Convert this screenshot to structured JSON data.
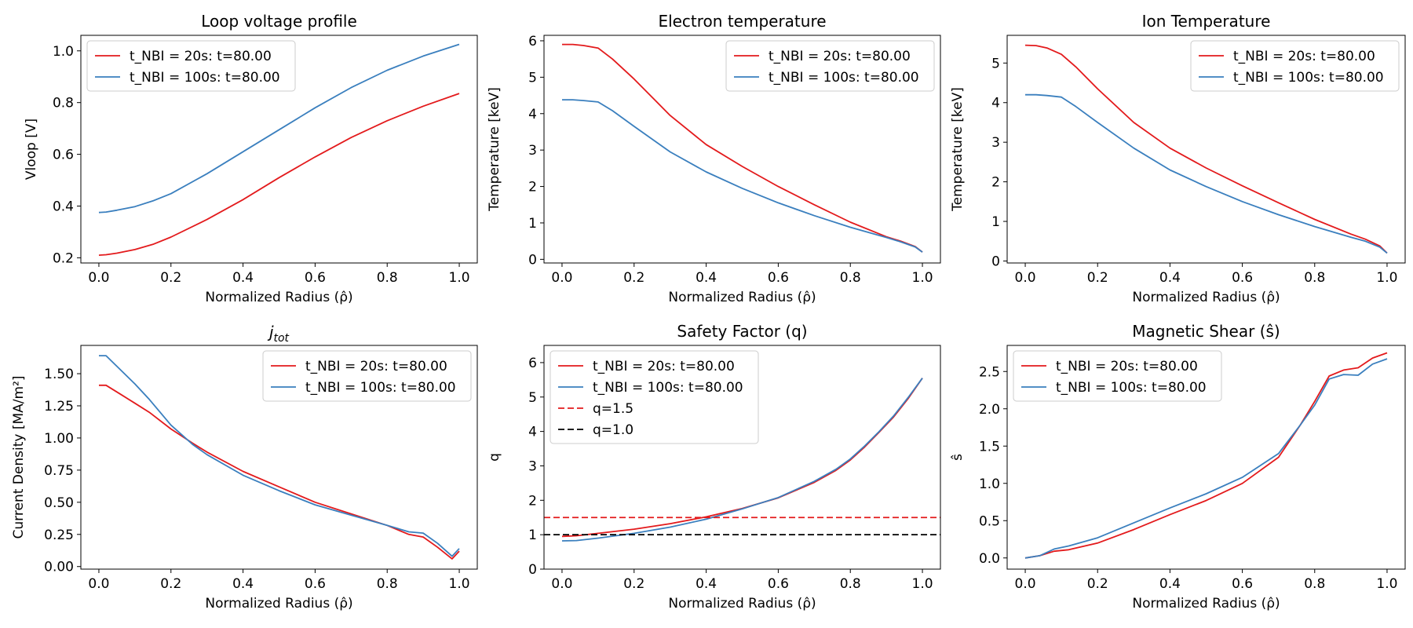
{
  "chart_data": [
    {
      "type": "line",
      "title": "Loop voltage profile",
      "xlabel": "Normalized Radius (ρ̂)",
      "ylabel": "Vloop [V]",
      "xlim": [
        -0.05,
        1.05
      ],
      "ylim": [
        0.18,
        1.06
      ],
      "xticks": [
        0.0,
        0.2,
        0.4,
        0.6,
        0.8,
        1.0
      ],
      "xtick_labels": [
        "0.0",
        "0.2",
        "0.4",
        "0.6",
        "0.8",
        "1.0"
      ],
      "yticks": [
        0.2,
        0.4,
        0.6,
        0.8,
        1.0
      ],
      "ytick_labels": [
        "0.2",
        "0.4",
        "0.6",
        "0.8",
        "1.0"
      ],
      "legend_loc": "top-left",
      "series": [
        {
          "name": "t_NBI = 20s: t=80.00",
          "color": "#e31a1c",
          "dash": "solid",
          "x": [
            0,
            0.02,
            0.05,
            0.1,
            0.15,
            0.2,
            0.3,
            0.4,
            0.5,
            0.6,
            0.7,
            0.8,
            0.9,
            1.0
          ],
          "y": [
            0.21,
            0.212,
            0.218,
            0.232,
            0.252,
            0.28,
            0.348,
            0.425,
            0.51,
            0.59,
            0.665,
            0.73,
            0.786,
            0.835
          ]
        },
        {
          "name": "t_NBI = 100s: t=80.00",
          "color": "#3a7fbe",
          "dash": "solid",
          "x": [
            0,
            0.02,
            0.05,
            0.1,
            0.15,
            0.2,
            0.3,
            0.4,
            0.5,
            0.6,
            0.7,
            0.8,
            0.9,
            1.0
          ],
          "y": [
            0.375,
            0.377,
            0.384,
            0.398,
            0.42,
            0.448,
            0.525,
            0.61,
            0.695,
            0.78,
            0.858,
            0.925,
            0.98,
            1.025
          ]
        }
      ]
    },
    {
      "type": "line",
      "title": "Electron temperature",
      "xlabel": "Normalized Radius (ρ̂)",
      "ylabel": "Temperature [keV]",
      "xlim": [
        -0.05,
        1.05
      ],
      "ylim": [
        -0.1,
        6.15
      ],
      "xticks": [
        0.0,
        0.2,
        0.4,
        0.6,
        0.8,
        1.0
      ],
      "xtick_labels": [
        "0.0",
        "0.2",
        "0.4",
        "0.6",
        "0.8",
        "1.0"
      ],
      "yticks": [
        0,
        1,
        2,
        3,
        4,
        5,
        6
      ],
      "ytick_labels": [
        "0",
        "1",
        "2",
        "3",
        "4",
        "5",
        "6"
      ],
      "legend_loc": "top-right",
      "series": [
        {
          "name": "t_NBI = 20s: t=80.00",
          "color": "#e31a1c",
          "dash": "solid",
          "x": [
            0,
            0.03,
            0.06,
            0.1,
            0.14,
            0.2,
            0.3,
            0.4,
            0.5,
            0.6,
            0.7,
            0.8,
            0.9,
            0.94,
            0.98,
            1.0
          ],
          "y": [
            5.9,
            5.9,
            5.87,
            5.8,
            5.5,
            4.95,
            3.95,
            3.15,
            2.55,
            2.0,
            1.5,
            1.02,
            0.62,
            0.5,
            0.35,
            0.2
          ]
        },
        {
          "name": "t_NBI = 100s: t=80.00",
          "color": "#3a7fbe",
          "dash": "solid",
          "x": [
            0,
            0.03,
            0.06,
            0.1,
            0.14,
            0.2,
            0.3,
            0.4,
            0.5,
            0.6,
            0.7,
            0.8,
            0.9,
            0.94,
            0.98,
            1.0
          ],
          "y": [
            4.38,
            4.38,
            4.36,
            4.32,
            4.08,
            3.65,
            2.95,
            2.4,
            1.95,
            1.55,
            1.2,
            0.88,
            0.6,
            0.48,
            0.34,
            0.2
          ]
        }
      ]
    },
    {
      "type": "line",
      "title": "Ion Temperature",
      "xlabel": "Normalized Radius (ρ̂)",
      "ylabel": "Temperature [keV]",
      "xlim": [
        -0.05,
        1.05
      ],
      "ylim": [
        -0.05,
        5.7
      ],
      "xticks": [
        0.0,
        0.2,
        0.4,
        0.6,
        0.8,
        1.0
      ],
      "xtick_labels": [
        "0.0",
        "0.2",
        "0.4",
        "0.6",
        "0.8",
        "1.0"
      ],
      "yticks": [
        0,
        1,
        2,
        3,
        4,
        5
      ],
      "ytick_labels": [
        "0",
        "1",
        "2",
        "3",
        "4",
        "5"
      ],
      "legend_loc": "top-right",
      "series": [
        {
          "name": "t_NBI = 20s: t=80.00",
          "color": "#e31a1c",
          "dash": "solid",
          "x": [
            0,
            0.03,
            0.06,
            0.1,
            0.14,
            0.2,
            0.3,
            0.4,
            0.5,
            0.6,
            0.7,
            0.8,
            0.9,
            0.94,
            0.98,
            1.0
          ],
          "y": [
            5.45,
            5.44,
            5.38,
            5.22,
            4.9,
            4.35,
            3.5,
            2.85,
            2.35,
            1.9,
            1.47,
            1.05,
            0.68,
            0.55,
            0.38,
            0.2
          ]
        },
        {
          "name": "t_NBI = 100s: t=80.00",
          "color": "#3a7fbe",
          "dash": "solid",
          "x": [
            0,
            0.03,
            0.06,
            0.1,
            0.14,
            0.2,
            0.3,
            0.4,
            0.5,
            0.6,
            0.7,
            0.8,
            0.9,
            0.94,
            0.98,
            1.0
          ],
          "y": [
            4.2,
            4.2,
            4.18,
            4.14,
            3.9,
            3.5,
            2.85,
            2.3,
            1.88,
            1.5,
            1.17,
            0.87,
            0.6,
            0.5,
            0.35,
            0.2
          ]
        }
      ]
    },
    {
      "type": "line",
      "title": "j_tot",
      "xlabel": "Normalized Radius (ρ̂)",
      "ylabel": "Current Density [MA/m²]",
      "xlim": [
        -0.05,
        1.05
      ],
      "ylim": [
        -0.02,
        1.72
      ],
      "xticks": [
        0.0,
        0.2,
        0.4,
        0.6,
        0.8,
        1.0
      ],
      "xtick_labels": [
        "0.0",
        "0.2",
        "0.4",
        "0.6",
        "0.8",
        "1.0"
      ],
      "yticks": [
        0.0,
        0.25,
        0.5,
        0.75,
        1.0,
        1.25,
        1.5
      ],
      "ytick_labels": [
        "0.00",
        "0.25",
        "0.50",
        "0.75",
        "1.00",
        "1.25",
        "1.50"
      ],
      "legend_loc": "top-right",
      "series": [
        {
          "name": "t_NBI = 20s: t=80.00",
          "color": "#e31a1c",
          "dash": "solid",
          "x": [
            0,
            0.02,
            0.06,
            0.1,
            0.14,
            0.2,
            0.26,
            0.3,
            0.4,
            0.5,
            0.6,
            0.7,
            0.8,
            0.86,
            0.9,
            0.94,
            0.98,
            1.0
          ],
          "y": [
            1.41,
            1.41,
            1.34,
            1.27,
            1.2,
            1.07,
            0.96,
            0.89,
            0.74,
            0.62,
            0.5,
            0.41,
            0.32,
            0.25,
            0.23,
            0.15,
            0.06,
            0.12
          ]
        },
        {
          "name": "t_NBI = 100s: t=80.00",
          "color": "#3a7fbe",
          "dash": "solid",
          "x": [
            0,
            0.02,
            0.06,
            0.1,
            0.14,
            0.2,
            0.26,
            0.3,
            0.4,
            0.5,
            0.6,
            0.7,
            0.8,
            0.86,
            0.9,
            0.94,
            0.98,
            1.0
          ],
          "y": [
            1.64,
            1.64,
            1.53,
            1.42,
            1.3,
            1.1,
            0.95,
            0.87,
            0.71,
            0.59,
            0.48,
            0.4,
            0.32,
            0.27,
            0.26,
            0.18,
            0.08,
            0.14
          ]
        }
      ]
    },
    {
      "type": "line",
      "title": "Safety Factor (q)",
      "xlabel": "Normalized Radius (ρ̂)",
      "ylabel": "q",
      "xlim": [
        -0.05,
        1.05
      ],
      "ylim": [
        0,
        6.5
      ],
      "xticks": [
        0.0,
        0.2,
        0.4,
        0.6,
        0.8,
        1.0
      ],
      "xtick_labels": [
        "0.0",
        "0.2",
        "0.4",
        "0.6",
        "0.8",
        "1.0"
      ],
      "yticks": [
        0,
        1,
        2,
        3,
        4,
        5,
        6
      ],
      "ytick_labels": [
        "0",
        "1",
        "2",
        "3",
        "4",
        "5",
        "6"
      ],
      "legend_loc": "top-left",
      "series": [
        {
          "name": "t_NBI = 20s: t=80.00",
          "color": "#e31a1c",
          "dash": "solid",
          "x": [
            0,
            0.04,
            0.1,
            0.2,
            0.3,
            0.4,
            0.5,
            0.6,
            0.7,
            0.76,
            0.8,
            0.84,
            0.88,
            0.92,
            0.96,
            1.0
          ],
          "y": [
            0.95,
            0.97,
            1.04,
            1.16,
            1.32,
            1.52,
            1.76,
            2.07,
            2.52,
            2.87,
            3.17,
            3.55,
            3.98,
            4.42,
            4.95,
            5.55
          ]
        },
        {
          "name": "t_NBI = 100s: t=80.00",
          "color": "#3a7fbe",
          "dash": "solid",
          "x": [
            0,
            0.04,
            0.1,
            0.2,
            0.3,
            0.4,
            0.5,
            0.6,
            0.7,
            0.76,
            0.8,
            0.84,
            0.88,
            0.92,
            0.96,
            1.0
          ],
          "y": [
            0.82,
            0.83,
            0.9,
            1.04,
            1.22,
            1.45,
            1.75,
            2.08,
            2.55,
            2.9,
            3.2,
            3.58,
            4.0,
            4.45,
            4.98,
            5.55
          ]
        },
        {
          "name": "q=1.5",
          "color": "#e31a1c",
          "dash": "dashed",
          "hline": 1.5
        },
        {
          "name": "q=1.0",
          "color": "#000000",
          "dash": "dashed",
          "hline": 1.0
        }
      ]
    },
    {
      "type": "line",
      "title": "Magnetic Shear (ŝ)",
      "xlabel": "Normalized Radius (ρ̂)",
      "ylabel": "ŝ",
      "xlim": [
        -0.05,
        1.05
      ],
      "ylim": [
        -0.15,
        2.85
      ],
      "xticks": [
        0.0,
        0.2,
        0.4,
        0.6,
        0.8,
        1.0
      ],
      "xtick_labels": [
        "0.0",
        "0.2",
        "0.4",
        "0.6",
        "0.8",
        "1.0"
      ],
      "yticks": [
        0.0,
        0.5,
        1.0,
        1.5,
        2.0,
        2.5
      ],
      "ytick_labels": [
        "0.0",
        "0.5",
        "1.0",
        "1.5",
        "2.0",
        "2.5"
      ],
      "legend_loc": "top-left",
      "series": [
        {
          "name": "t_NBI = 20s: t=80.00",
          "color": "#e31a1c",
          "dash": "solid",
          "x": [
            0,
            0.04,
            0.08,
            0.12,
            0.2,
            0.3,
            0.4,
            0.5,
            0.6,
            0.7,
            0.76,
            0.8,
            0.84,
            0.88,
            0.92,
            0.96,
            1.0
          ],
          "y": [
            0.0,
            0.03,
            0.09,
            0.11,
            0.2,
            0.38,
            0.58,
            0.77,
            1.0,
            1.35,
            1.78,
            2.1,
            2.44,
            2.52,
            2.55,
            2.68,
            2.75
          ]
        },
        {
          "name": "t_NBI = 100s: t=80.00",
          "color": "#3a7fbe",
          "dash": "solid",
          "x": [
            0,
            0.04,
            0.08,
            0.12,
            0.2,
            0.3,
            0.4,
            0.5,
            0.6,
            0.7,
            0.76,
            0.8,
            0.84,
            0.88,
            0.92,
            0.96,
            1.0
          ],
          "y": [
            0.0,
            0.03,
            0.12,
            0.16,
            0.27,
            0.47,
            0.67,
            0.86,
            1.08,
            1.4,
            1.78,
            2.05,
            2.4,
            2.46,
            2.45,
            2.6,
            2.67
          ]
        }
      ]
    }
  ]
}
